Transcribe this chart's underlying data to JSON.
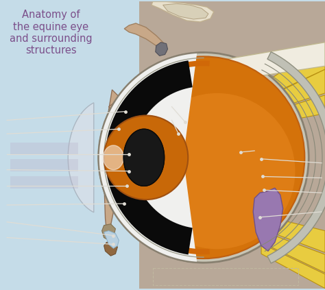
{
  "title": "Anatomy of\nthe equine eye\nand surrounding\nstructures",
  "title_color": "#7b4f8a",
  "title_fontsize": 10.5,
  "bg_left_color": "#c5dce8",
  "bg_right_color": "#b8a898",
  "eyeball_orange": "#d4720a",
  "eyeball_dark_orange": "#b85a08",
  "eyeball_highlight": "#e88820",
  "sclera_gray": "#c8c5b5",
  "sclera_edge": "#888070",
  "white_area": "#f0f0ee",
  "lens_gray": "#b0b8c0",
  "lens_edge": "#8090a0",
  "pupil_dark": "#1a1a1a",
  "iris_orange": "#c86808",
  "ciliary_black": "#0a0a0a",
  "cornea_white": "#e8eaec",
  "muscle_yellow": "#e8cc40",
  "muscle_dark_yellow": "#d4b020",
  "muscle_edge": "#b89010",
  "purple_tissue": "#9878b0",
  "purple_dark": "#705088",
  "skin_color": "#c8a888",
  "bone_color": "#d8cbb0",
  "bone_edge": "#a8987a",
  "blue_lid": "#a8c8d8",
  "annotation_color": "#e0ddd5",
  "label_blur_color": "#b8b0c8"
}
